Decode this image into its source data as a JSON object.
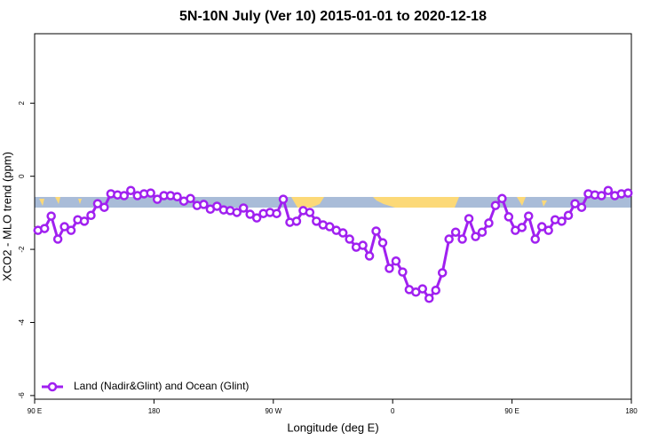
{
  "chart_data": {
    "type": "line",
    "title": "5N-10N July (Ver 10)   2015-01-01 to 2020-12-18",
    "x_label": "Longitude (deg E)",
    "y_label": "XCO2 - MLO trend (ppm)",
    "xlim": [
      90,
      540
    ],
    "ylim": [
      -6.1,
      3.9
    ],
    "xticks": [
      {
        "value": 90,
        "label": "90 E"
      },
      180,
      {
        "value": 270,
        "label": "90 W"
      },
      {
        "value": 360,
        "label": "0"
      },
      {
        "value": 450,
        "label": "90 E"
      },
      {
        "value": 540,
        "label": "180"
      }
    ],
    "yticks": [
      -6,
      -4,
      -2,
      0,
      2
    ],
    "legend": "lower left",
    "x": [
      92.5,
      97.5,
      102.5,
      107.5,
      112.5,
      117.5,
      122.5,
      127.5,
      132.5,
      137.5,
      142.5,
      147.5,
      152.5,
      157.5,
      162.5,
      167.5,
      172.5,
      177.5,
      182.5,
      187.5,
      192.5,
      197.5,
      202.5,
      207.5,
      212.5,
      217.5,
      222.5,
      227.5,
      232.5,
      237.5,
      242.5,
      247.5,
      252.5,
      257.5,
      262.5,
      267.5,
      272.5,
      277.5,
      282.5,
      287.5,
      292.5,
      297.5,
      302.5,
      307.5,
      312.5,
      317.5,
      322.5,
      327.5,
      332.5,
      337.5,
      342.5,
      347.5,
      352.5,
      357.5,
      362.5,
      367.5,
      372.5,
      377.5,
      382.5,
      387.5,
      392.5,
      397.5,
      402.5,
      407.5,
      412.5,
      417.5,
      422.5,
      427.5,
      432.5,
      437.5,
      442.5,
      447.5,
      452.5,
      457.5,
      462.5,
      467.5,
      472.5,
      477.5,
      482.5,
      487.5,
      492.5,
      497.5,
      502.5,
      507.5,
      512.5,
      517.5,
      522.5,
      527.5,
      532.5,
      537.5
    ],
    "series": [
      {
        "name": "Land (Nadir&Glint) and Ocean (Glint)",
        "color": "#a020f0",
        "values": [
          -1.48,
          -1.43,
          -1.09,
          -1.72,
          -1.38,
          -1.48,
          -1.19,
          -1.23,
          -1.07,
          -0.75,
          -0.85,
          -0.48,
          -0.51,
          -0.53,
          -0.39,
          -0.53,
          -0.48,
          -0.46,
          -0.63,
          -0.53,
          -0.53,
          -0.56,
          -0.68,
          -0.61,
          -0.8,
          -0.77,
          -0.9,
          -0.82,
          -0.92,
          -0.94,
          -0.99,
          -0.87,
          -1.04,
          -1.14,
          -1.02,
          -0.99,
          -1.02,
          -0.63,
          -1.26,
          -1.23,
          -0.94,
          -0.99,
          -1.23,
          -1.33,
          -1.38,
          -1.48,
          -1.55,
          -1.72,
          -1.94,
          -1.89,
          -2.18,
          -1.5,
          -1.82,
          -2.52,
          -2.32,
          -2.62,
          -3.1,
          -3.17,
          -3.08,
          -3.34,
          -3.12,
          -2.64,
          -1.72,
          -1.53,
          -1.72,
          -1.16,
          -1.65,
          -1.53,
          -1.28,
          -0.8,
          -0.61,
          -1.11,
          -1.48,
          -1.4,
          -1.09,
          -1.72,
          -1.38,
          -1.48,
          -1.19,
          -1.23,
          -1.07,
          -0.75,
          -0.85,
          -0.48,
          -0.51,
          -0.53,
          -0.39,
          -0.53,
          -0.48,
          -0.46
        ]
      }
    ]
  }
}
